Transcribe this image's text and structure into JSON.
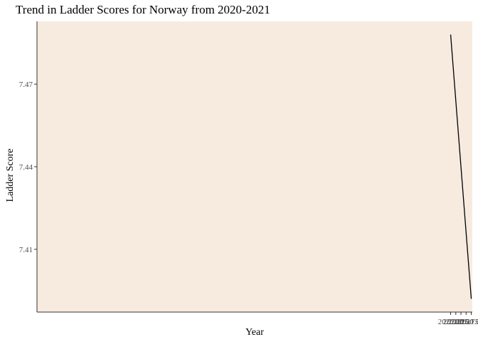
{
  "chart_data": {
    "type": "line",
    "title": "Trend in Ladder Scores for Norway from 2020-2021",
    "xlabel": "Year",
    "ylabel": "Ladder Score",
    "x": [
      2020.0,
      2021.0
    ],
    "series": [
      {
        "values": [
          7.488,
          7.392
        ],
        "color": "#000000"
      }
    ],
    "xlim": [
      1999.95,
      2021.05
    ],
    "ylim": [
      7.3872,
      7.4928
    ],
    "xticks": [
      2020.0,
      2020.25,
      2020.5,
      2020.75,
      2021.0
    ],
    "xtick_labels": [
      "2020.00",
      "2020.25",
      "2020.50",
      "2020.75",
      "2021.00"
    ],
    "yticks": [
      7.41,
      7.44,
      7.47
    ],
    "ytick_labels": [
      "7.41",
      "7.44",
      "7.47"
    ],
    "grid": false,
    "panel_color": "#f7ebe0",
    "legend": "none"
  }
}
